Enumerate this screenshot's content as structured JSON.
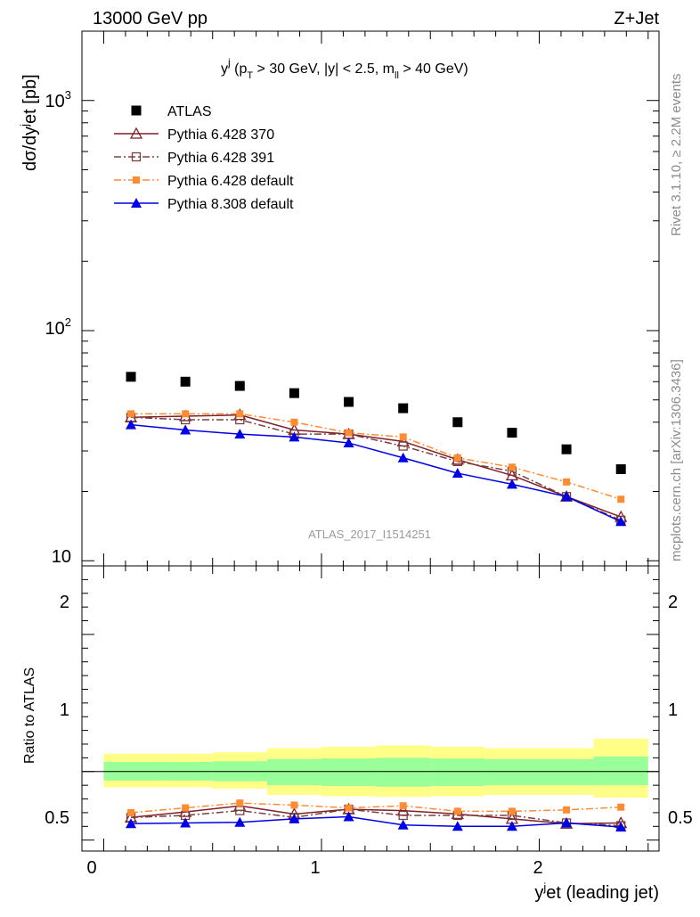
{
  "header": {
    "left": "13000 GeV pp",
    "right": "Z+Jet"
  },
  "side_labels": {
    "rivet": "Rivet 3.1.10, ≥ 2.2M events",
    "mcplots": "mcplots.cern.ch [arXiv:1306.3436]"
  },
  "watermark": "ATLAS_2017_I1514251",
  "colors": {
    "atlas": "#000000",
    "p6_370": "#7f1f2a",
    "p6_391": "#7a4040",
    "p6_default": "#ff8c33",
    "p8_default": "#0000e6",
    "band_inner": "#99ff99",
    "band_outer": "#ffff88"
  },
  "chart_data": [
    {
      "type": "scatter",
      "title": "",
      "subtitle": {
        "y": "y",
        "j": "j",
        "open": " (p",
        "T": "T",
        "cut1": " > 30 GeV, |y| < 2.5, m",
        "ll": "ll",
        "cut2": " > 40 GeV)"
      },
      "ylabel": {
        "a": "dσ/dy",
        "j": "j",
        "b": "et [pb]"
      },
      "yscale": "log",
      "ylim": [
        9.5,
        2000
      ],
      "xlim": [
        -0.1,
        2.55
      ],
      "yticks": [
        {
          "base": "10",
          "exp": "3"
        },
        {
          "base": "10",
          "exp": "2"
        },
        {
          "base": "10",
          "exp": ""
        }
      ],
      "x": [
        0.125,
        0.375,
        0.625,
        0.875,
        1.125,
        1.375,
        1.625,
        1.875,
        2.125,
        2.375
      ],
      "legend_position": "top-left",
      "series": [
        {
          "name": "ATLAS",
          "values": [
            63,
            60,
            57.5,
            53.5,
            49,
            46,
            40,
            36,
            30.5,
            25
          ]
        },
        {
          "name": "Pythia 6.428 370",
          "values": [
            42,
            42.5,
            43,
            37,
            35.5,
            33,
            27.5,
            23.5,
            19,
            15.5
          ]
        },
        {
          "name": "Pythia 6.428 391",
          "values": [
            42,
            41,
            41,
            35.5,
            35.5,
            31.5,
            27,
            24.5,
            19,
            15
          ]
        },
        {
          "name": "Pythia 6.428 default",
          "values": [
            43.5,
            43.5,
            43.5,
            40,
            36,
            34.5,
            28,
            25.5,
            22,
            18.5
          ]
        },
        {
          "name": "Pythia 8.308 default",
          "values": [
            39,
            37,
            35.5,
            34.5,
            32.5,
            28,
            24,
            21.5,
            19,
            14.8
          ]
        }
      ]
    },
    {
      "type": "line",
      "title": "",
      "ylabel": "Ratio to ATLAS",
      "xlabel": {
        "a": "y",
        "j": "j",
        "b": "et (leading jet)"
      },
      "ylim": [
        0.42,
        2.5
      ],
      "yticks": [
        "0.5",
        "1",
        "2"
      ],
      "xlim": [
        -0.1,
        2.55
      ],
      "xticks": [
        "0",
        "1",
        "2"
      ],
      "x": [
        0.125,
        0.375,
        0.625,
        0.875,
        1.125,
        1.375,
        1.625,
        1.875,
        2.125,
        2.375
      ],
      "band": {
        "inner_low": [
          0.935,
          0.935,
          0.93,
          0.9,
          0.895,
          0.89,
          0.895,
          0.9,
          0.9,
          0.9
        ],
        "inner_high": [
          1.07,
          1.07,
          1.075,
          1.09,
          1.095,
          1.1,
          1.095,
          1.09,
          1.09,
          1.11
        ],
        "outer_low": [
          0.885,
          0.885,
          0.875,
          0.83,
          0.82,
          0.815,
          0.82,
          0.83,
          0.83,
          0.81
        ],
        "outer_high": [
          1.13,
          1.13,
          1.14,
          1.17,
          1.18,
          1.19,
          1.18,
          1.17,
          1.17,
          1.24
        ]
      },
      "series": [
        {
          "name": "Pythia 6.428 370",
          "values": [
            0.665,
            0.705,
            0.75,
            0.69,
            0.725,
            0.715,
            0.69,
            0.655,
            0.62,
            0.625
          ]
        },
        {
          "name": "Pythia 6.428 391",
          "values": [
            0.665,
            0.68,
            0.715,
            0.665,
            0.725,
            0.68,
            0.68,
            0.68,
            0.625,
            0.605
          ]
        },
        {
          "name": "Pythia 6.428 default",
          "values": [
            0.7,
            0.735,
            0.77,
            0.755,
            0.735,
            0.75,
            0.71,
            0.71,
            0.72,
            0.74
          ]
        },
        {
          "name": "Pythia 8.308 default",
          "values": [
            0.62,
            0.625,
            0.63,
            0.655,
            0.67,
            0.61,
            0.6,
            0.6,
            0.625,
            0.595
          ]
        }
      ]
    }
  ]
}
